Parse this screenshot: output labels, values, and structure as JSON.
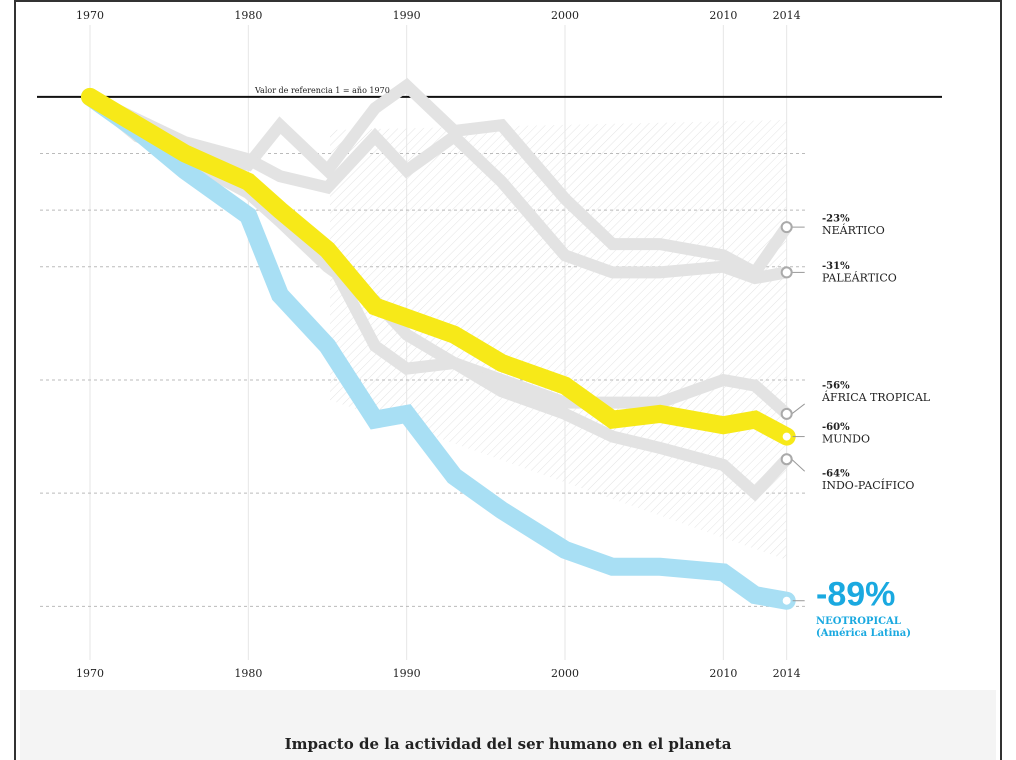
{
  "chart_data": {
    "type": "line",
    "title": "Impacto de la actividad del ser humano en el planeta",
    "reference_label": "Valor de referencia 1 = año 1970",
    "reference_value": 1,
    "x": [
      1970,
      1973,
      1976,
      1980,
      1982,
      1985,
      1988,
      1990,
      1993,
      1996,
      2000,
      2003,
      2006,
      2010,
      2012,
      2014
    ],
    "xlim": [
      1967,
      2024
    ],
    "xticks": [
      1970,
      1980,
      1990,
      2000,
      2010,
      2014
    ],
    "ylim": [
      0,
      1.15
    ],
    "yticks": [
      0.1,
      0.3,
      0.5,
      0.7,
      0.8,
      0.9
    ],
    "grid": true,
    "series": [
      {
        "name": "NEÁRTICO",
        "change": -23,
        "change_label": "-23%",
        "color": "#e3e3e3",
        "values": [
          1,
          0.93,
          0.9,
          0.88,
          0.95,
          0.87,
          0.98,
          1.02,
          0.94,
          0.95,
          0.82,
          0.74,
          0.74,
          0.72,
          0.69,
          0.77
        ]
      },
      {
        "name": "PALEÁRTICO",
        "change": -31,
        "change_label": "-31%",
        "color": "#e3e3e3",
        "values": [
          1,
          0.96,
          0.92,
          0.89,
          0.86,
          0.84,
          0.93,
          0.87,
          0.93,
          0.85,
          0.72,
          0.69,
          0.69,
          0.7,
          0.68,
          0.69
        ]
      },
      {
        "name": "ÁFRICA TROPICAL",
        "change": -56,
        "change_label": "-56%",
        "color": "#e3e3e3",
        "values": [
          1,
          0.95,
          0.9,
          0.84,
          0.79,
          0.72,
          0.56,
          0.52,
          0.53,
          0.5,
          0.46,
          0.46,
          0.46,
          0.5,
          0.49,
          0.44
        ]
      },
      {
        "name": "INDO-PACÍFICO",
        "change": -64,
        "change_label": "-64%",
        "color": "#e3e3e3",
        "values": [
          1,
          0.95,
          0.89,
          0.83,
          0.78,
          0.7,
          0.64,
          0.58,
          0.53,
          0.48,
          0.44,
          0.4,
          0.38,
          0.35,
          0.3,
          0.36
        ]
      },
      {
        "name": "NEOTROPICAL",
        "subname": "(América Latina)",
        "change": -89,
        "change_label": "-89%",
        "color": "#a8dff4",
        "label_color": "#1aa9e0",
        "values": [
          1,
          0.94,
          0.87,
          0.79,
          0.65,
          0.56,
          0.43,
          0.44,
          0.33,
          0.27,
          0.2,
          0.17,
          0.17,
          0.16,
          0.12,
          0.11
        ]
      },
      {
        "name": "MUNDO",
        "change": -60,
        "change_label": "-60%",
        "color": "#f7e918",
        "values": [
          1,
          0.95,
          0.9,
          0.85,
          0.8,
          0.73,
          0.63,
          0.61,
          0.58,
          0.53,
          0.49,
          0.43,
          0.44,
          0.42,
          0.43,
          0.4
        ]
      }
    ]
  }
}
